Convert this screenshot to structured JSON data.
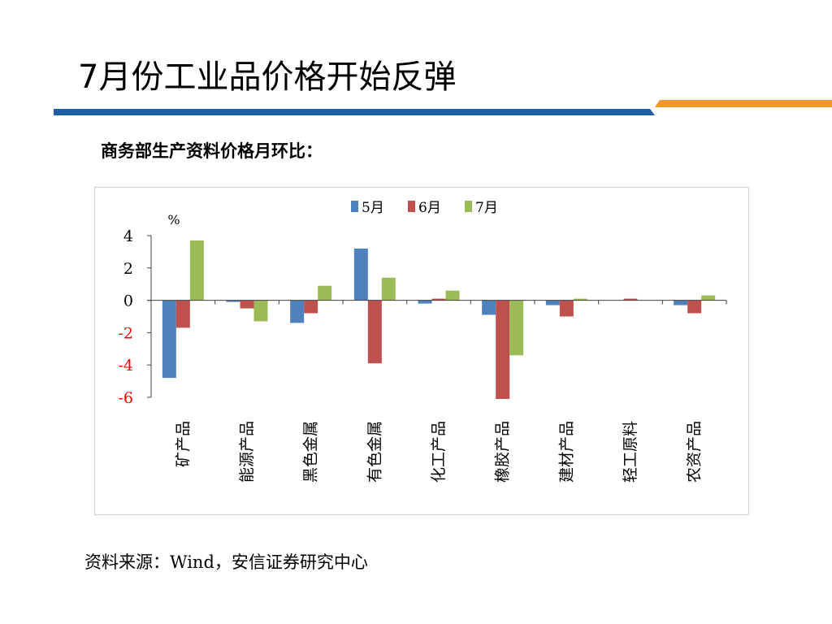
{
  "slide": {
    "title": "7月份工业品价格开始反弹",
    "subtitle": "商务部生产资料价格月环比：",
    "source": "资料来源：Wind，安信证券研究中心",
    "accent_blue": "#1f5fa6",
    "accent_orange": "#f0962a"
  },
  "chart_data": {
    "type": "bar",
    "title": "",
    "xlabel": "",
    "ylabel": "%",
    "ylim": [
      -6,
      4
    ],
    "yticks": [
      4,
      2,
      0,
      -2,
      -4,
      -6
    ],
    "legend": "top-center",
    "categories": [
      "矿产品",
      "能源产品",
      "黑色金属",
      "有色金属",
      "化工产品",
      "橡胶产品",
      "建材产品",
      "轻工原料",
      "农资产品"
    ],
    "series": [
      {
        "name": "5月",
        "color": "#4f81bd",
        "values": [
          -4.8,
          -0.1,
          -1.4,
          3.2,
          -0.2,
          -0.9,
          -0.3,
          0.0,
          -0.3
        ]
      },
      {
        "name": "6月",
        "color": "#c0504d",
        "values": [
          -1.7,
          -0.5,
          -0.8,
          -3.9,
          0.1,
          -6.1,
          -1.0,
          0.1,
          -0.8
        ]
      },
      {
        "name": "7月",
        "color": "#9bbb59",
        "values": [
          3.7,
          -1.3,
          0.9,
          1.4,
          0.6,
          -3.4,
          0.1,
          0.0,
          0.3
        ]
      }
    ],
    "negative_tick_color": "#ff0000"
  }
}
